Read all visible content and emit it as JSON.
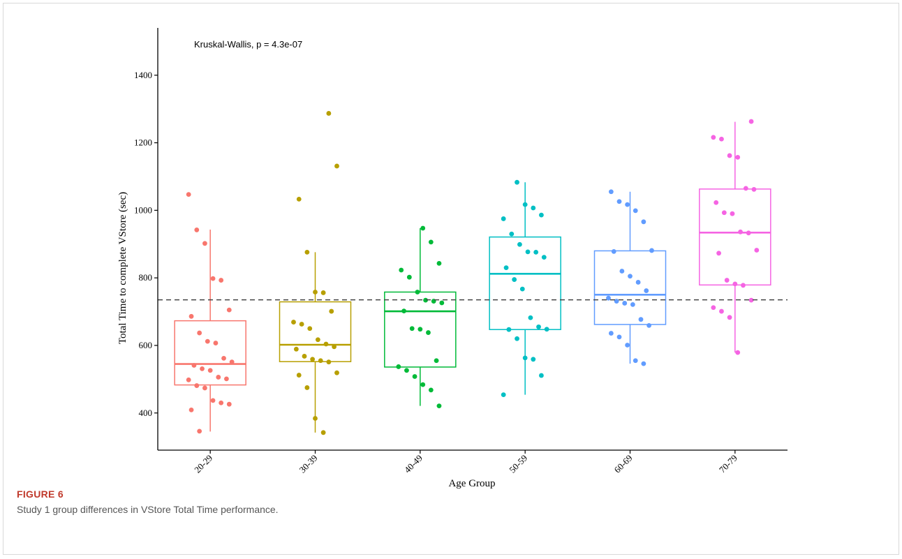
{
  "figure": {
    "label": "FIGURE 6",
    "caption": "Study 1 group differences in VStore Total Time performance."
  },
  "chart_data": {
    "type": "box",
    "xlabel": "Age Group",
    "ylabel": "Total Time to complete VStore (sec)",
    "annotation": "Kruskal-Wallis, p = 4.3e-07",
    "ylim": [
      290,
      1540
    ],
    "yticks": [
      400,
      600,
      800,
      1000,
      1200,
      1400
    ],
    "reference_line": 735,
    "grid": false,
    "categories": [
      "20-29",
      "30-39",
      "40-49",
      "50-59",
      "60-69",
      "70-79"
    ],
    "groups": [
      {
        "name": "20-29",
        "color": "#F8766D",
        "q1": 483,
        "median": 545,
        "q3": 673,
        "whisker_low": 345,
        "whisker_high": 943,
        "points": [
          1047,
          942,
          902,
          798,
          793,
          705,
          686,
          637,
          612,
          607,
          562,
          551,
          541,
          531,
          526,
          506,
          501,
          498,
          481,
          474,
          437,
          430,
          426,
          409,
          346
        ]
      },
      {
        "name": "30-39",
        "color": "#B79F00",
        "q1": 552,
        "median": 602,
        "q3": 729,
        "whisker_low": 342,
        "whisker_high": 876,
        "points": [
          1287,
          1131,
          1033,
          876,
          758,
          756,
          701,
          669,
          663,
          650,
          617,
          604,
          596,
          589,
          568,
          559,
          555,
          551,
          519,
          512,
          475,
          384,
          342
        ]
      },
      {
        "name": "40-49",
        "color": "#00BA38",
        "q1": 536,
        "median": 701,
        "q3": 758,
        "whisker_low": 421,
        "whisker_high": 947,
        "points": [
          947,
          906,
          843,
          823,
          802,
          758,
          734,
          731,
          726,
          702,
          650,
          648,
          638,
          555,
          537,
          526,
          508,
          484,
          468,
          421
        ]
      },
      {
        "name": "50-59",
        "color": "#00BFC4",
        "q1": 647,
        "median": 812,
        "q3": 921,
        "whisker_low": 454,
        "whisker_high": 1083,
        "points": [
          1083,
          1017,
          1007,
          986,
          975,
          930,
          899,
          877,
          876,
          861,
          830,
          795,
          767,
          682,
          655,
          648,
          647,
          620,
          563,
          559,
          511,
          454
        ]
      },
      {
        "name": "60-69",
        "color": "#619CFF",
        "q1": 662,
        "median": 750,
        "q3": 880,
        "whisker_low": 546,
        "whisker_high": 1055,
        "points": [
          1055,
          1026,
          1017,
          999,
          966,
          881,
          878,
          820,
          805,
          787,
          762,
          740,
          731,
          725,
          721,
          677,
          659,
          636,
          625,
          601,
          555,
          546
        ]
      },
      {
        "name": "70-79",
        "color": "#F564E3",
        "q1": 779,
        "median": 934,
        "q3": 1063,
        "whisker_low": 579,
        "whisker_high": 1262,
        "points": [
          1263,
          1216,
          1211,
          1162,
          1157,
          1065,
          1062,
          1023,
          993,
          990,
          936,
          933,
          882,
          873,
          793,
          782,
          778,
          734,
          712,
          701,
          683,
          579
        ]
      }
    ]
  }
}
